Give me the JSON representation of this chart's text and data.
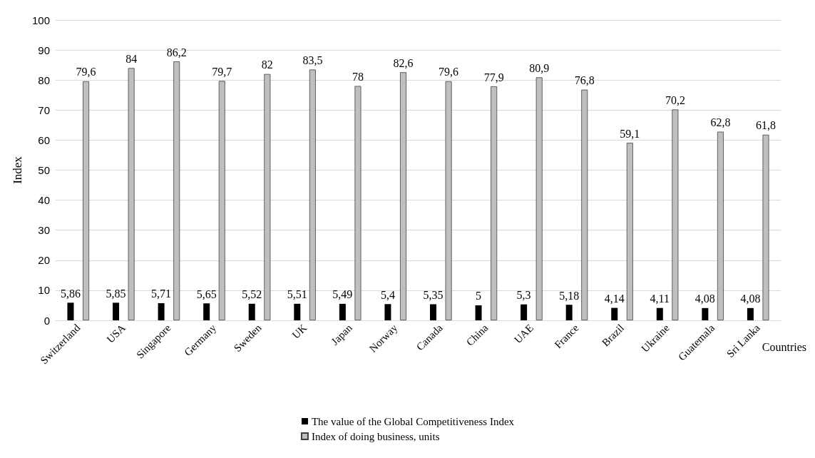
{
  "chart_data": {
    "type": "bar",
    "xlabel": "Countries",
    "ylabel": "Index",
    "categories": [
      "Switzerland",
      "USA",
      "Singapore",
      "Germany",
      "Sweden",
      "UK",
      "Japan",
      "Norway",
      "Canada",
      "China",
      "UAE",
      "France",
      "Brazil",
      "Ukraine",
      "Guatemala",
      "Sri Lanka"
    ],
    "series": [
      {
        "name": "The value of the Global Competitiveness Index",
        "color": "#000000",
        "values": [
          5.86,
          5.85,
          5.71,
          5.65,
          5.52,
          5.51,
          5.49,
          5.4,
          5.35,
          5,
          5.3,
          5.18,
          4.14,
          4.11,
          4.08,
          4.08
        ],
        "value_labels": [
          "5,86",
          "5,85",
          "5,71",
          "5,65",
          "5,52",
          "5,51",
          "5,49",
          "5,4",
          "5,35",
          "5",
          "5,3",
          "5,18",
          "4,14",
          "4,11",
          "4,08",
          "4,08"
        ]
      },
      {
        "name": "Index of doing business, units",
        "color": "#bfbfbf",
        "values": [
          79.6,
          84,
          86.2,
          79.7,
          82,
          83.5,
          78,
          82.6,
          79.6,
          77.9,
          80.9,
          76.8,
          59.1,
          70.2,
          62.8,
          61.8
        ],
        "value_labels": [
          "79,6",
          "84",
          "86,2",
          "79,7",
          "82",
          "83,5",
          "78",
          "82,6",
          "79,6",
          "77,9",
          "80,9",
          "76,8",
          "59,1",
          "70,2",
          "62,8",
          "61,8"
        ]
      }
    ],
    "ylim": [
      0,
      100
    ],
    "yticks": [
      0,
      10,
      20,
      30,
      40,
      50,
      60,
      70,
      80,
      90,
      100
    ],
    "grid": "y",
    "legend": "bottom"
  }
}
